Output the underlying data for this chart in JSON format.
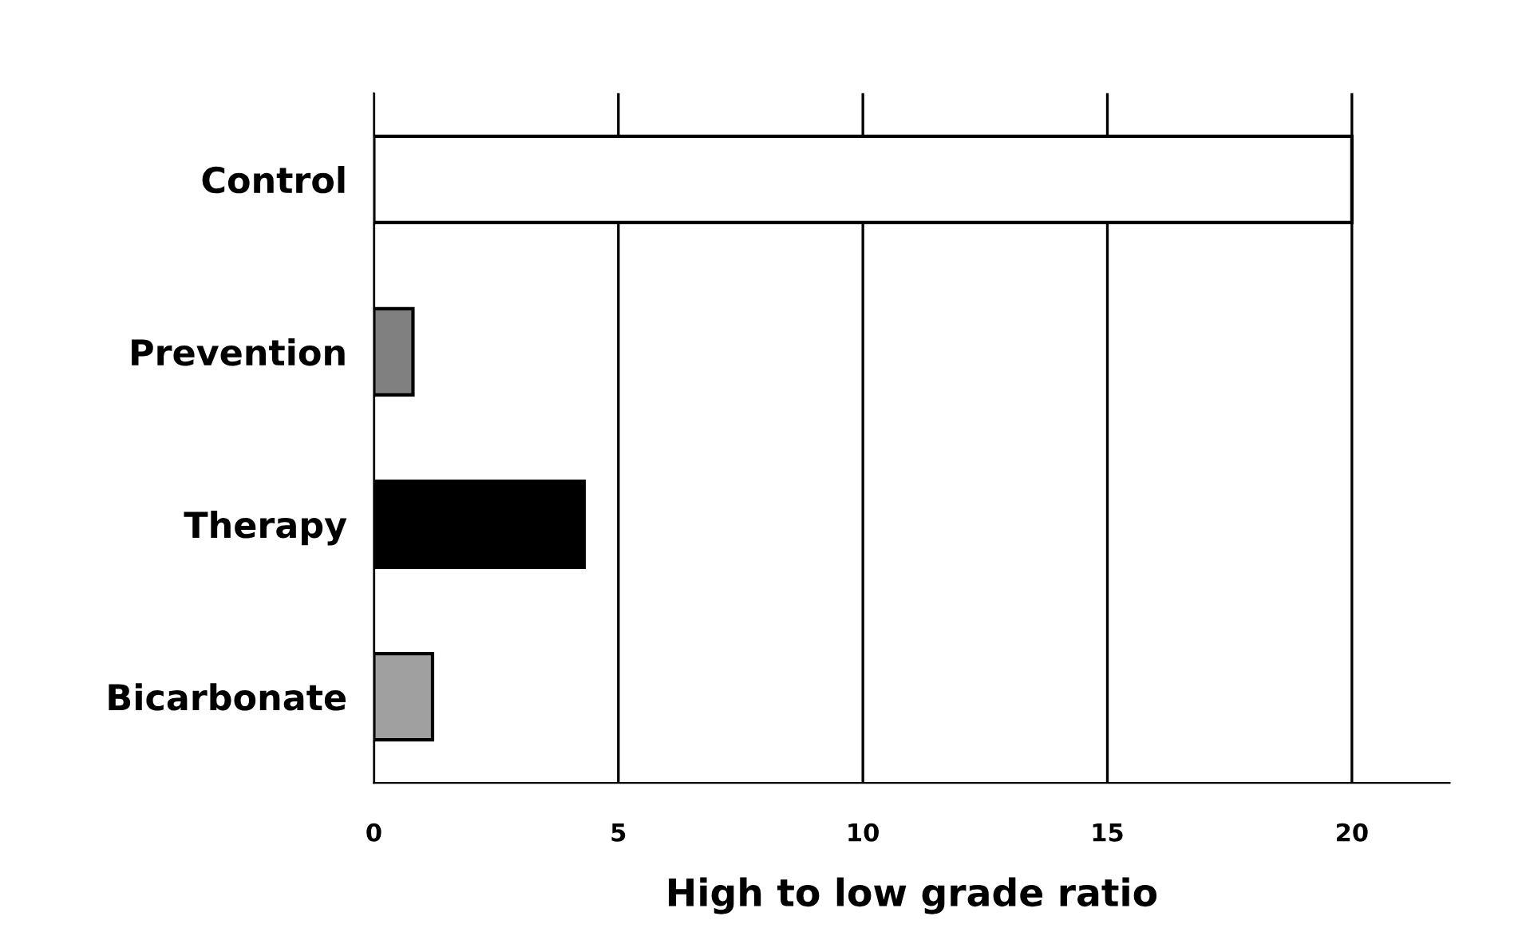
{
  "chart_data": {
    "type": "bar",
    "orientation": "horizontal",
    "xlabel": "High to low grade ratio",
    "categories": [
      "Control",
      "Prevention",
      "Therapy",
      "Bicarbonate"
    ],
    "values": [
      20.0,
      0.8,
      4.3,
      1.2
    ],
    "colors": [
      "#ffffff",
      "#808080",
      "#000000",
      "#a0a0a0"
    ],
    "xlim": [
      0,
      22
    ],
    "xticks": [
      0,
      5,
      10,
      15,
      20
    ],
    "grid": "x"
  }
}
